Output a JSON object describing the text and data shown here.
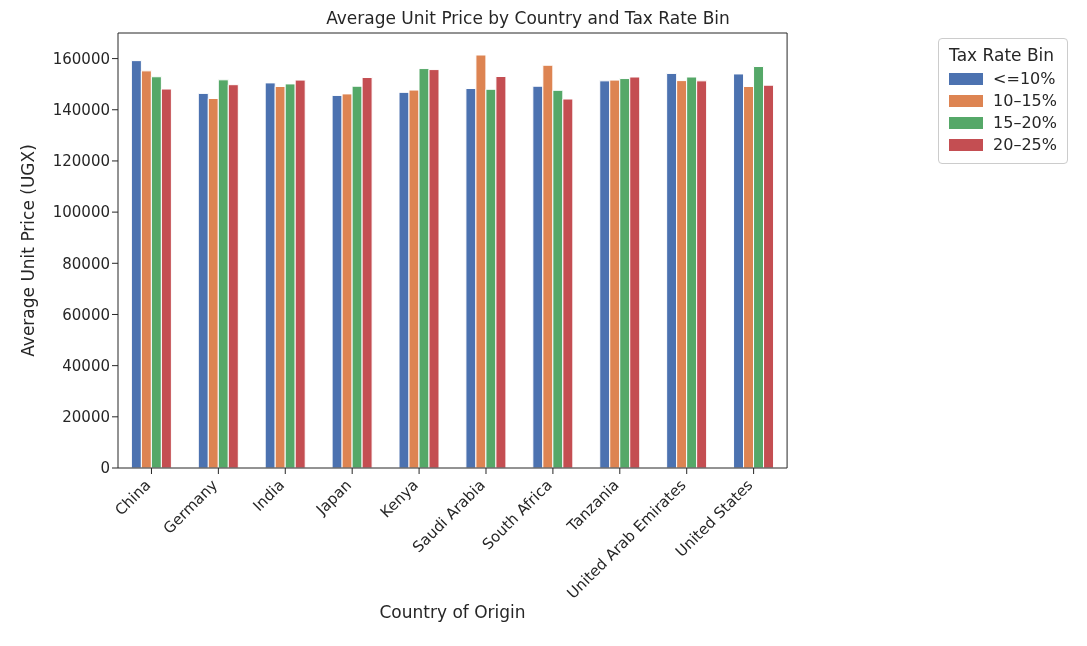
{
  "chart_data": {
    "type": "bar",
    "title": "Average Unit Price by Country and Tax Rate Bin",
    "xlabel": "Country of Origin",
    "ylabel": "Average Unit Price (UGX)",
    "legend_title": "Tax Rate Bin",
    "categories": [
      "China",
      "Germany",
      "India",
      "Japan",
      "Kenya",
      "Saudi Arabia",
      "South Africa",
      "Tanzania",
      "United Arab Emirates",
      "United States"
    ],
    "series": [
      {
        "name": "<=10%",
        "color": "#4c72b0",
        "values": [
          159200,
          146400,
          150500,
          145600,
          146800,
          148300,
          149200,
          151300,
          154200,
          154000
        ]
      },
      {
        "name": "10–15%",
        "color": "#dd8452",
        "values": [
          155200,
          144400,
          149100,
          146200,
          147700,
          161400,
          157400,
          151600,
          151400,
          149100
        ]
      },
      {
        "name": "15–20%",
        "color": "#55a868",
        "values": [
          152900,
          151700,
          150100,
          149200,
          156100,
          148000,
          147600,
          152200,
          152800,
          156900
        ]
      },
      {
        "name": "20–25%",
        "color": "#c44e52",
        "values": [
          148100,
          149800,
          151600,
          152600,
          155700,
          153000,
          144200,
          152800,
          151300,
          149600
        ]
      }
    ],
    "ylim": [
      0,
      170000
    ],
    "yticks": [
      0,
      20000,
      40000,
      60000,
      80000,
      100000,
      120000,
      140000,
      160000
    ],
    "grid": false,
    "legend": "top right"
  }
}
